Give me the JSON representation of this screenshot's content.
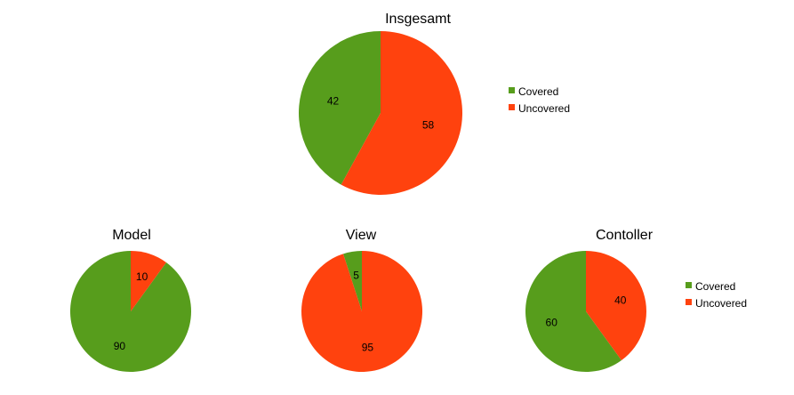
{
  "colors": {
    "covered": "#579d1c",
    "uncovered": "#ff420e"
  },
  "legend": [
    "Covered",
    "Uncovered"
  ],
  "chart_data": [
    {
      "type": "pie",
      "title": "Insgesamt",
      "categories": [
        "Covered",
        "Uncovered"
      ],
      "values": [
        42,
        58
      ],
      "legend": "right"
    },
    {
      "type": "pie",
      "title": "Model",
      "categories": [
        "Covered",
        "Uncovered"
      ],
      "values": [
        90,
        10
      ]
    },
    {
      "type": "pie",
      "title": "View",
      "categories": [
        "Covered",
        "Uncovered"
      ],
      "values": [
        5,
        95
      ]
    },
    {
      "type": "pie",
      "title": "Contoller",
      "categories": [
        "Covered",
        "Uncovered"
      ],
      "values": [
        60,
        40
      ],
      "legend": "right"
    }
  ]
}
